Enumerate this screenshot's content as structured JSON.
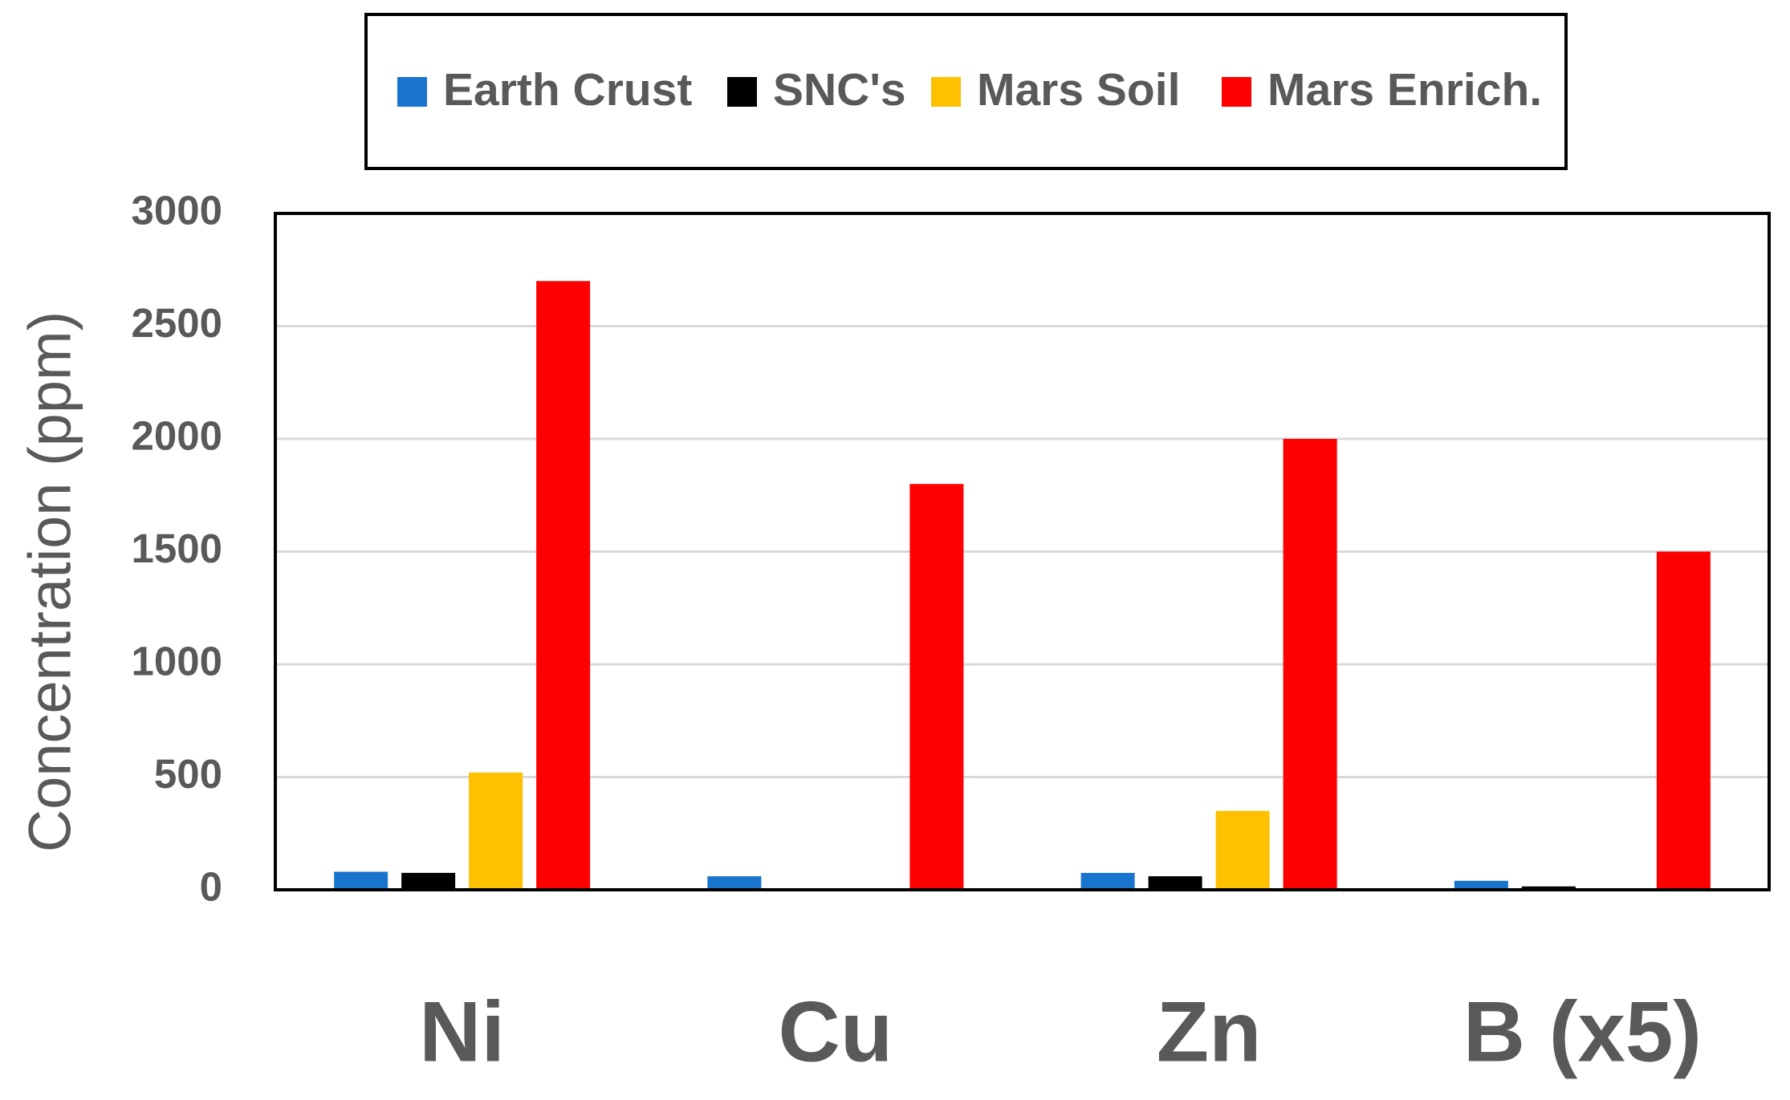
{
  "chart_data": {
    "type": "bar",
    "y_label": "Concentration (ppm)",
    "categories": [
      "Ni",
      "Cu",
      "Zn",
      "B (x5)"
    ],
    "series": [
      {
        "name": "Earth Crust",
        "color": "#1874cd",
        "values": [
          80,
          60,
          75,
          40
        ]
      },
      {
        "name": "SNC's",
        "color": "#000000",
        "values": [
          75,
          null,
          60,
          15
        ]
      },
      {
        "name": "Mars Soil",
        "color": "#ffc000",
        "values": [
          520,
          null,
          350,
          null
        ]
      },
      {
        "name": "Mars Enrich.",
        "color": "#ff0000",
        "values": [
          2700,
          1800,
          2000,
          1500
        ]
      }
    ],
    "ylim": [
      0,
      3000
    ],
    "yticks": [
      0,
      500,
      1000,
      1500,
      2000,
      2500,
      3000
    ],
    "grid": true,
    "legend": "top"
  }
}
